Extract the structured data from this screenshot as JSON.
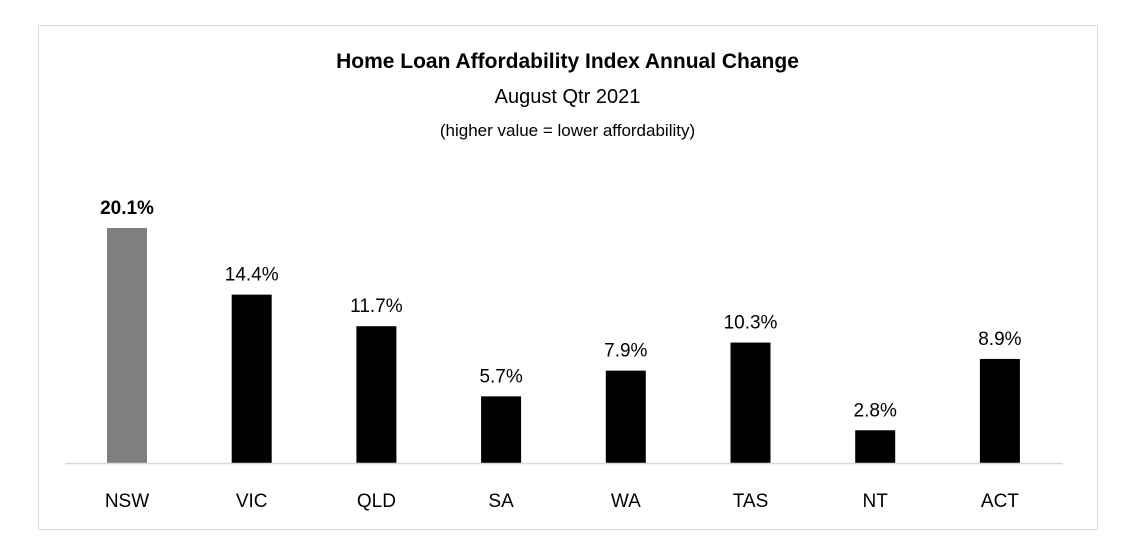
{
  "chart_data": {
    "type": "bar",
    "title": "Home Loan Affordability Index Annual Change",
    "subtitle": "August Qtr 2021",
    "note": "(higher value = lower affordability)",
    "categories": [
      "NSW",
      "VIC",
      "QLD",
      "SA",
      "WA",
      "TAS",
      "NT",
      "ACT"
    ],
    "values": [
      20.1,
      14.4,
      11.7,
      5.7,
      7.9,
      10.3,
      2.8,
      8.9
    ],
    "data_labels": [
      "20.1%",
      "14.4%",
      "11.7%",
      "5.7%",
      "7.9%",
      "10.3%",
      "2.8%",
      "8.9%"
    ],
    "highlight_index": 0,
    "colors": {
      "default": "#000000",
      "highlight": "#7f7f7f",
      "axis": "#d9d9d9"
    },
    "xlabel": "",
    "ylabel": "",
    "ylim": [
      0,
      20.1
    ],
    "grid": false,
    "legend": "none"
  }
}
